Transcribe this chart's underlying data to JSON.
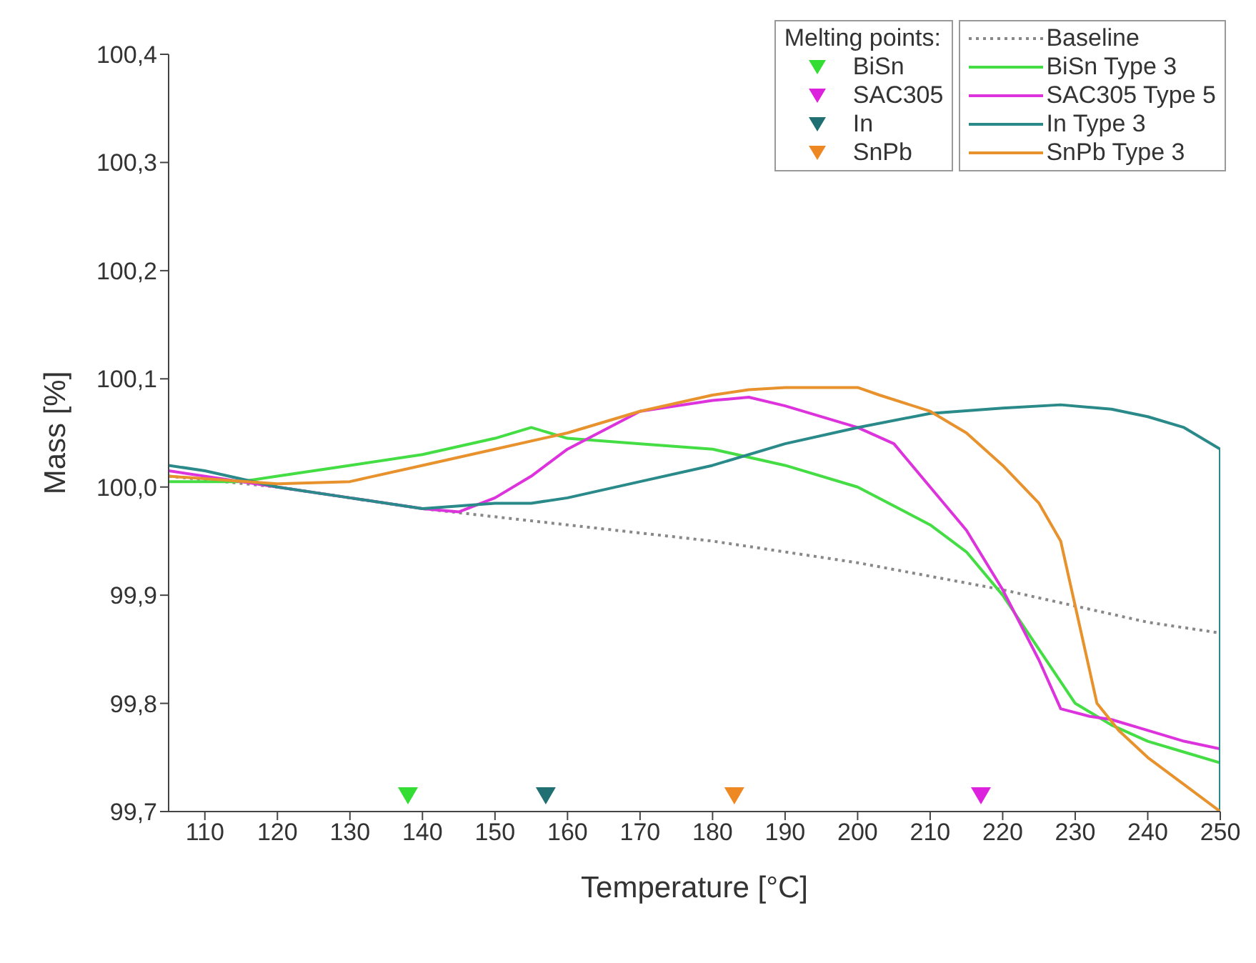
{
  "chart_data": {
    "type": "line",
    "xlabel": "Temperature [°C]",
    "ylabel": "Mass [%]",
    "legend_title": "Melting points:",
    "legend": "top right",
    "grid": false,
    "xlim": [
      105,
      250
    ],
    "xticks": [
      110,
      120,
      130,
      140,
      150,
      160,
      170,
      180,
      190,
      200,
      210,
      220,
      230,
      240,
      250
    ],
    "ylim": [
      99.7,
      100.4
    ],
    "yticks": [
      {
        "value": 99.7,
        "label": "99,7"
      },
      {
        "value": 99.8,
        "label": "99,8"
      },
      {
        "value": 99.9,
        "label": "99,9"
      },
      {
        "value": 100.0,
        "label": "100,0"
      },
      {
        "value": 100.1,
        "label": "100,1"
      },
      {
        "value": 100.2,
        "label": "100,2"
      },
      {
        "value": 100.3,
        "label": "100,3"
      },
      {
        "value": 100.4,
        "label": "100,4"
      }
    ],
    "series": [
      {
        "name": "BiSn",
        "type": "scatter",
        "marker": "triangle",
        "color": "#33dd33",
        "x": [
          138
        ],
        "values": [
          99.715
        ]
      },
      {
        "name": "SAC305",
        "type": "scatter",
        "marker": "triangle",
        "color": "#dd22dd",
        "x": [
          217
        ],
        "values": [
          99.715
        ]
      },
      {
        "name": "In",
        "type": "scatter",
        "marker": "triangle",
        "color": "#1f6f73",
        "x": [
          157
        ],
        "values": [
          99.715
        ]
      },
      {
        "name": "SnPb",
        "type": "scatter",
        "marker": "triangle",
        "color": "#ee8822",
        "x": [
          183
        ],
        "values": [
          99.715
        ]
      },
      {
        "name": "Baseline",
        "line_style": "dotted",
        "color": "#888888",
        "x": [
          105,
          120,
          140,
          160,
          180,
          200,
          220,
          230,
          240,
          250
        ],
        "values": [
          100.01,
          100.0,
          99.98,
          99.965,
          99.95,
          99.93,
          99.905,
          99.89,
          99.875,
          99.865
        ]
      },
      {
        "name": "BiSn Type 3",
        "line_style": "solid",
        "color": "#44dd44",
        "x": [
          105,
          115,
          120,
          130,
          140,
          150,
          155,
          160,
          170,
          180,
          190,
          200,
          210,
          215,
          220,
          225,
          230,
          235,
          240,
          245,
          250
        ],
        "values": [
          100.005,
          100.005,
          100.01,
          100.02,
          100.03,
          100.045,
          100.055,
          100.045,
          100.04,
          100.035,
          100.02,
          100.0,
          99.965,
          99.94,
          99.9,
          99.85,
          99.8,
          99.78,
          99.765,
          99.755,
          99.745
        ]
      },
      {
        "name": "SAC305 Type 5",
        "line_style": "solid",
        "color": "#dd33dd",
        "x": [
          105,
          120,
          130,
          140,
          145,
          150,
          155,
          160,
          170,
          180,
          185,
          190,
          200,
          205,
          210,
          215,
          220,
          225,
          228,
          232,
          235,
          240,
          245,
          250
        ],
        "values": [
          100.015,
          100.0,
          99.99,
          99.98,
          99.977,
          99.99,
          100.01,
          100.035,
          100.07,
          100.08,
          100.083,
          100.075,
          100.055,
          100.04,
          100.0,
          99.96,
          99.905,
          99.84,
          99.795,
          99.788,
          99.785,
          99.775,
          99.765,
          99.758
        ]
      },
      {
        "name": "In Type 3",
        "line_style": "solid",
        "color": "#2a8a8a",
        "x": [
          105,
          110,
          120,
          130,
          140,
          150,
          155,
          160,
          170,
          180,
          190,
          200,
          210,
          220,
          228,
          235,
          240,
          245,
          250,
          250
        ],
        "values": [
          100.02,
          100.015,
          100.0,
          99.99,
          99.98,
          99.985,
          99.985,
          99.99,
          100.005,
          100.02,
          100.04,
          100.055,
          100.068,
          100.073,
          100.076,
          100.072,
          100.065,
          100.055,
          100.035,
          99.7
        ]
      },
      {
        "name": "SnPb Type 3",
        "line_style": "solid",
        "color": "#e8922e",
        "x": [
          105,
          120,
          130,
          140,
          150,
          160,
          170,
          180,
          185,
          190,
          200,
          203,
          210,
          215,
          220,
          225,
          228,
          230,
          233,
          236,
          240,
          245,
          250
        ],
        "values": [
          100.01,
          100.003,
          100.005,
          100.02,
          100.035,
          100.05,
          100.07,
          100.085,
          100.09,
          100.092,
          100.092,
          100.085,
          100.07,
          100.05,
          100.02,
          99.985,
          99.95,
          99.89,
          99.8,
          99.775,
          99.75,
          99.725,
          99.7
        ]
      }
    ]
  }
}
